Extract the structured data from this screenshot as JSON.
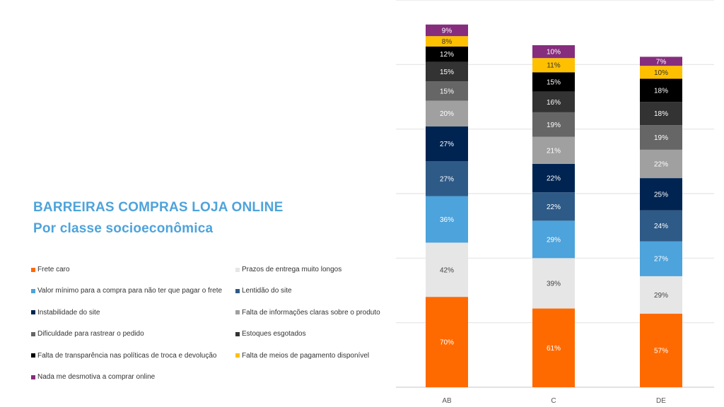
{
  "chart_data": {
    "type": "bar",
    "stacked": true,
    "title": "BARREIRAS COMPRAS LOJA ONLINE",
    "subtitle": "Por classe socioeconômica",
    "categories": [
      "AB",
      "C",
      "DE"
    ],
    "ylim": [
      0,
      300
    ],
    "grid": true,
    "legend_position": "left",
    "series": [
      {
        "name": "Frete caro",
        "color": "#ff6a00",
        "values": [
          70,
          61,
          57
        ]
      },
      {
        "name": "Prazos de entrega muito longos",
        "color": "#e6e6e6",
        "values": [
          42,
          39,
          29
        ]
      },
      {
        "name": "Valor mínimo para a compra para não ter que pagar o frete",
        "color": "#4da3db",
        "values": [
          36,
          29,
          27
        ]
      },
      {
        "name": "Lentidão do site",
        "color": "#2e5a87",
        "values": [
          27,
          22,
          24
        ]
      },
      {
        "name": "Instabilidade do site",
        "color": "#002452",
        "values": [
          27,
          22,
          25
        ]
      },
      {
        "name": "Falta de informações claras sobre o produto",
        "color": "#a0a0a0",
        "values": [
          20,
          21,
          22
        ]
      },
      {
        "name": "Dificuldade para rastrear o pedido",
        "color": "#666666",
        "values": [
          15,
          19,
          19
        ]
      },
      {
        "name": "Estoques esgotados",
        "color": "#333333",
        "values": [
          15,
          16,
          18
        ]
      },
      {
        "name": "Falta de transparência nas políticas de troca e devolução",
        "color": "#000000",
        "values": [
          12,
          15,
          18
        ]
      },
      {
        "name": "Falta de meios de pagamento disponível",
        "color": "#ffc000",
        "values": [
          8,
          11,
          10
        ]
      },
      {
        "name": "Nada me desmotiva a comprar online",
        "color": "#862d7e",
        "values": [
          9,
          10,
          7
        ]
      }
    ]
  }
}
